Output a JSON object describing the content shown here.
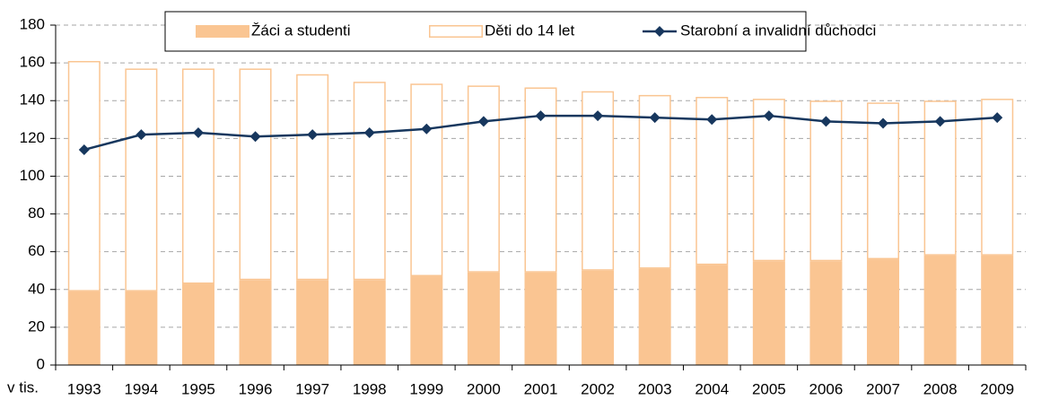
{
  "chart_data": {
    "type": "bar",
    "xlabel": "v tis.",
    "categories": [
      "1993",
      "1994",
      "1995",
      "1996",
      "1997",
      "1998",
      "1999",
      "2000",
      "2001",
      "2002",
      "2003",
      "2004",
      "2005",
      "2006",
      "2007",
      "2008",
      "2009"
    ],
    "series": [
      {
        "name": "Žáci a studenti",
        "color": "#fac592",
        "style": "filled",
        "values": [
          39,
          39,
          43,
          45,
          45,
          45,
          47,
          49,
          49,
          50,
          51,
          53,
          55,
          55,
          56,
          58,
          58
        ]
      },
      {
        "name": "Děti do 14 let",
        "color": "#fac592",
        "style": "outline",
        "values": [
          122,
          118,
          114,
          112,
          109,
          105,
          102,
          99,
          98,
          95,
          92,
          89,
          86,
          85,
          83,
          82,
          83
        ]
      },
      {
        "name": "Starobní a invalidní důchodci",
        "color": "#17375e",
        "type": "line",
        "values": [
          114,
          122,
          123,
          121,
          122,
          123,
          125,
          129,
          132,
          132,
          131,
          130,
          132,
          129,
          128,
          129,
          131
        ]
      }
    ],
    "ylim": [
      0,
      180
    ],
    "yticks": [
      0,
      20,
      40,
      60,
      80,
      100,
      120,
      140,
      160,
      180
    ],
    "grid": true,
    "legend": "top"
  }
}
